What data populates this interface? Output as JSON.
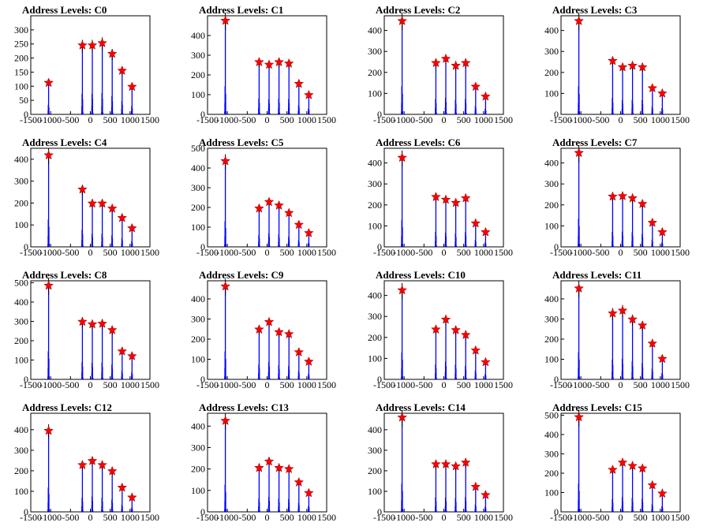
{
  "chart_data": [
    {
      "type": "bar",
      "title": "Address Levels: C0",
      "xlim": [
        -1500,
        1500
      ],
      "xticks": [
        -1500,
        -1000,
        -500,
        0,
        500,
        1000,
        1500
      ],
      "ylim": [
        0,
        350
      ],
      "yticks": [
        0,
        50,
        100,
        150,
        200,
        250,
        300
      ],
      "peaks": [
        {
          "x": -1050,
          "y": 112
        },
        {
          "x": -200,
          "y": 245
        },
        {
          "x": 50,
          "y": 245
        },
        {
          "x": 300,
          "y": 253
        },
        {
          "x": 550,
          "y": 215
        },
        {
          "x": 800,
          "y": 155
        },
        {
          "x": 1050,
          "y": 98
        }
      ]
    },
    {
      "type": "bar",
      "title": "Address Levels: C1",
      "xlim": [
        -1500,
        1500
      ],
      "xticks": [
        -1500,
        -1000,
        -500,
        0,
        500,
        1000,
        1500
      ],
      "ylim": [
        0,
        500
      ],
      "yticks": [
        0,
        100,
        200,
        300,
        400
      ],
      "peaks": [
        {
          "x": -1050,
          "y": 475
        },
        {
          "x": -200,
          "y": 265
        },
        {
          "x": 50,
          "y": 252
        },
        {
          "x": 300,
          "y": 265
        },
        {
          "x": 550,
          "y": 258
        },
        {
          "x": 800,
          "y": 155
        },
        {
          "x": 1050,
          "y": 98
        }
      ]
    },
    {
      "type": "bar",
      "title": "Address Levels: C2",
      "xlim": [
        -1500,
        1500
      ],
      "xticks": [
        -1500,
        -1000,
        -500,
        0,
        500,
        1000,
        1500
      ],
      "ylim": [
        0,
        470
      ],
      "yticks": [
        0,
        100,
        200,
        300,
        400
      ],
      "peaks": [
        {
          "x": -1050,
          "y": 445
        },
        {
          "x": -200,
          "y": 245
        },
        {
          "x": 50,
          "y": 265
        },
        {
          "x": 300,
          "y": 232
        },
        {
          "x": 550,
          "y": 245
        },
        {
          "x": 800,
          "y": 132
        },
        {
          "x": 1050,
          "y": 85
        }
      ]
    },
    {
      "type": "bar",
      "title": "Address Levels: C3",
      "xlim": [
        -1500,
        1500
      ],
      "xticks": [
        -1500,
        -1000,
        -500,
        0,
        500,
        1000,
        1500
      ],
      "ylim": [
        0,
        470
      ],
      "yticks": [
        0,
        100,
        200,
        300,
        400
      ],
      "peaks": [
        {
          "x": -1050,
          "y": 445
        },
        {
          "x": -200,
          "y": 255
        },
        {
          "x": 50,
          "y": 225
        },
        {
          "x": 300,
          "y": 232
        },
        {
          "x": 550,
          "y": 225
        },
        {
          "x": 800,
          "y": 125
        },
        {
          "x": 1050,
          "y": 100
        }
      ]
    },
    {
      "type": "bar",
      "title": "Address Levels: C4",
      "xlim": [
        -1500,
        1500
      ],
      "xticks": [
        -1500,
        -1000,
        -500,
        0,
        500,
        1000,
        1500
      ],
      "ylim": [
        0,
        450
      ],
      "yticks": [
        0,
        100,
        200,
        300,
        400
      ],
      "peaks": [
        {
          "x": -1050,
          "y": 418
        },
        {
          "x": -200,
          "y": 262
        },
        {
          "x": 50,
          "y": 198
        },
        {
          "x": 300,
          "y": 198
        },
        {
          "x": 550,
          "y": 175
        },
        {
          "x": 800,
          "y": 132
        },
        {
          "x": 1050,
          "y": 85
        }
      ]
    },
    {
      "type": "bar",
      "title": "Address Levels: C5",
      "xlim": [
        -1500,
        1500
      ],
      "xticks": [
        -1500,
        -1000,
        -500,
        0,
        500,
        1000,
        1500
      ],
      "ylim": [
        0,
        500
      ],
      "yticks": [
        0,
        100,
        200,
        300,
        400,
        500
      ],
      "peaks": [
        {
          "x": -1050,
          "y": 435
        },
        {
          "x": -200,
          "y": 195
        },
        {
          "x": 50,
          "y": 228
        },
        {
          "x": 300,
          "y": 210
        },
        {
          "x": 550,
          "y": 172
        },
        {
          "x": 800,
          "y": 112
        },
        {
          "x": 1050,
          "y": 70
        }
      ]
    },
    {
      "type": "bar",
      "title": "Address Levels: C6",
      "xlim": [
        -1500,
        1500
      ],
      "xticks": [
        -1500,
        -1000,
        -500,
        0,
        500,
        1000,
        1500
      ],
      "ylim": [
        0,
        470
      ],
      "yticks": [
        0,
        100,
        200,
        300,
        400
      ],
      "peaks": [
        {
          "x": -1050,
          "y": 425
        },
        {
          "x": -200,
          "y": 238
        },
        {
          "x": 50,
          "y": 225
        },
        {
          "x": 300,
          "y": 210
        },
        {
          "x": 550,
          "y": 232
        },
        {
          "x": 800,
          "y": 112
        },
        {
          "x": 1050,
          "y": 70
        }
      ]
    },
    {
      "type": "bar",
      "title": "Address Levels: C7",
      "xlim": [
        -1500,
        1500
      ],
      "xticks": [
        -1500,
        -1000,
        -500,
        0,
        500,
        1000,
        1500
      ],
      "ylim": [
        0,
        470
      ],
      "yticks": [
        0,
        100,
        200,
        300,
        400
      ],
      "peaks": [
        {
          "x": -1050,
          "y": 448
        },
        {
          "x": -200,
          "y": 240
        },
        {
          "x": 50,
          "y": 242
        },
        {
          "x": 300,
          "y": 232
        },
        {
          "x": 550,
          "y": 205
        },
        {
          "x": 800,
          "y": 115
        },
        {
          "x": 1050,
          "y": 70
        }
      ]
    },
    {
      "type": "bar",
      "title": "Address Levels: C8",
      "xlim": [
        -1500,
        1500
      ],
      "xticks": [
        -1500,
        -1000,
        -500,
        0,
        500,
        1000,
        1500
      ],
      "ylim": [
        0,
        510
      ],
      "yticks": [
        0,
        100,
        200,
        300,
        400,
        500
      ],
      "peaks": [
        {
          "x": -1050,
          "y": 485
        },
        {
          "x": -200,
          "y": 298
        },
        {
          "x": 50,
          "y": 285
        },
        {
          "x": 300,
          "y": 288
        },
        {
          "x": 550,
          "y": 255
        },
        {
          "x": 800,
          "y": 145
        },
        {
          "x": 1050,
          "y": 120
        }
      ]
    },
    {
      "type": "bar",
      "title": "Address Levels: C9",
      "xlim": [
        -1500,
        1500
      ],
      "xticks": [
        -1500,
        -1000,
        -500,
        0,
        500,
        1000,
        1500
      ],
      "ylim": [
        0,
        490
      ],
      "yticks": [
        0,
        100,
        200,
        300,
        400
      ],
      "peaks": [
        {
          "x": -1050,
          "y": 462
        },
        {
          "x": -200,
          "y": 248
        },
        {
          "x": 50,
          "y": 285
        },
        {
          "x": 300,
          "y": 235
        },
        {
          "x": 550,
          "y": 225
        },
        {
          "x": 800,
          "y": 135
        },
        {
          "x": 1050,
          "y": 88
        }
      ]
    },
    {
      "type": "bar",
      "title": "Address Levels: C10",
      "xlim": [
        -1500,
        1500
      ],
      "xticks": [
        -1500,
        -1000,
        -500,
        0,
        500,
        1000,
        1500
      ],
      "ylim": [
        0,
        470
      ],
      "yticks": [
        0,
        100,
        200,
        300,
        400
      ],
      "peaks": [
        {
          "x": -1050,
          "y": 425
        },
        {
          "x": -200,
          "y": 238
        },
        {
          "x": 50,
          "y": 285
        },
        {
          "x": 300,
          "y": 235
        },
        {
          "x": 550,
          "y": 212
        },
        {
          "x": 800,
          "y": 138
        },
        {
          "x": 1050,
          "y": 82
        }
      ]
    },
    {
      "type": "bar",
      "title": "Address Levels: C11",
      "xlim": [
        -1500,
        1500
      ],
      "xticks": [
        -1500,
        -1000,
        -500,
        0,
        500,
        1000,
        1500
      ],
      "ylim": [
        0,
        490
      ],
      "yticks": [
        0,
        100,
        200,
        300,
        400
      ],
      "peaks": [
        {
          "x": -1050,
          "y": 452
        },
        {
          "x": -200,
          "y": 328
        },
        {
          "x": 50,
          "y": 342
        },
        {
          "x": 300,
          "y": 298
        },
        {
          "x": 550,
          "y": 268
        },
        {
          "x": 800,
          "y": 178
        },
        {
          "x": 1050,
          "y": 102
        }
      ]
    },
    {
      "type": "bar",
      "title": "Address Levels: C12",
      "xlim": [
        -1500,
        1500
      ],
      "xticks": [
        -1500,
        -1000,
        -500,
        0,
        500,
        1000,
        1500
      ],
      "ylim": [
        0,
        480
      ],
      "yticks": [
        0,
        100,
        200,
        300,
        400
      ],
      "peaks": [
        {
          "x": -1050,
          "y": 395
        },
        {
          "x": -200,
          "y": 228
        },
        {
          "x": 50,
          "y": 248
        },
        {
          "x": 300,
          "y": 228
        },
        {
          "x": 550,
          "y": 198
        },
        {
          "x": 800,
          "y": 118
        },
        {
          "x": 1050,
          "y": 70
        }
      ]
    },
    {
      "type": "bar",
      "title": "Address Levels: C13",
      "xlim": [
        -1500,
        1500
      ],
      "xticks": [
        -1500,
        -1000,
        -500,
        0,
        500,
        1000,
        1500
      ],
      "ylim": [
        0,
        460
      ],
      "yticks": [
        0,
        100,
        200,
        300,
        400
      ],
      "peaks": [
        {
          "x": -1050,
          "y": 425
        },
        {
          "x": -200,
          "y": 205
        },
        {
          "x": 50,
          "y": 235
        },
        {
          "x": 300,
          "y": 205
        },
        {
          "x": 550,
          "y": 200
        },
        {
          "x": 800,
          "y": 138
        },
        {
          "x": 1050,
          "y": 88
        }
      ]
    },
    {
      "type": "bar",
      "title": "Address Levels: C14",
      "xlim": [
        -1500,
        1500
      ],
      "xticks": [
        -1500,
        -1000,
        -500,
        0,
        500,
        1000,
        1500
      ],
      "ylim": [
        0,
        480
      ],
      "yticks": [
        0,
        100,
        200,
        300,
        400
      ],
      "peaks": [
        {
          "x": -1050,
          "y": 460
        },
        {
          "x": -200,
          "y": 232
        },
        {
          "x": 50,
          "y": 232
        },
        {
          "x": 300,
          "y": 222
        },
        {
          "x": 550,
          "y": 240
        },
        {
          "x": 800,
          "y": 122
        },
        {
          "x": 1050,
          "y": 82
        }
      ]
    },
    {
      "type": "bar",
      "title": "Address Levels: C15",
      "xlim": [
        -1500,
        1500
      ],
      "xticks": [
        -1500,
        -1000,
        -500,
        0,
        500,
        1000,
        1500
      ],
      "ylim": [
        0,
        510
      ],
      "yticks": [
        0,
        100,
        200,
        300,
        400,
        500
      ],
      "peaks": [
        {
          "x": -1050,
          "y": 490
        },
        {
          "x": -200,
          "y": 218
        },
        {
          "x": 50,
          "y": 255
        },
        {
          "x": 300,
          "y": 238
        },
        {
          "x": 550,
          "y": 225
        },
        {
          "x": 800,
          "y": 138
        },
        {
          "x": 1050,
          "y": 95
        }
      ]
    }
  ],
  "colors": {
    "bars": "#0000ff",
    "outline": "#000000",
    "marker": "#ff0000"
  }
}
